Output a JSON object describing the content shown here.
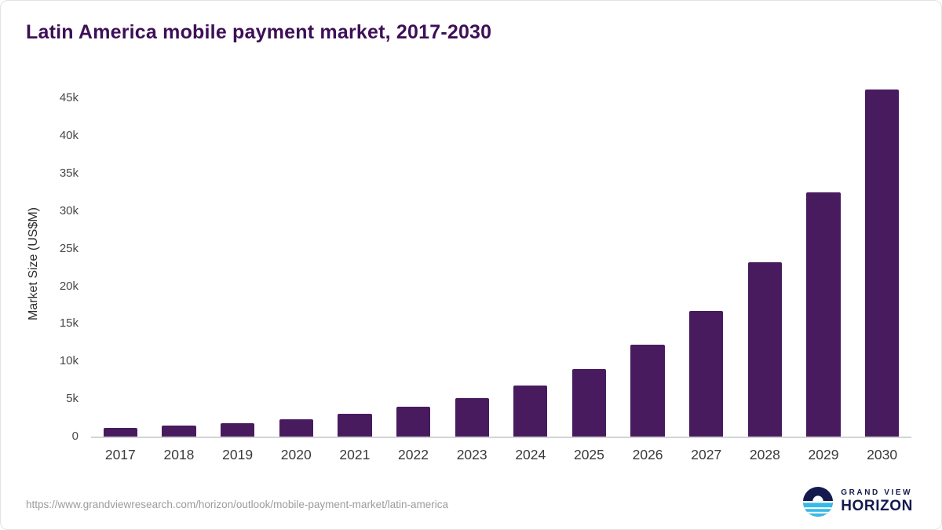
{
  "title": "Latin America mobile payment market, 2017-2030",
  "y_axis_title": "Market Size (US$M)",
  "footer": {
    "source_url": "https://www.grandviewresearch.com/horizon/outlook/mobile-payment-market/latin-america"
  },
  "logo": {
    "line1": "GRAND VIEW",
    "line2": "HORIZON"
  },
  "colors": {
    "bar": "#481b5f",
    "title": "#3e0f57",
    "axis_text": "#3a3a3a",
    "footer_text": "#9c9c9c",
    "logo_navy": "#141a4e",
    "logo_cyan": "#35bae8"
  },
  "chart_data": {
    "type": "bar",
    "title": "Latin America mobile payment market, 2017-2030",
    "categories": [
      "2017",
      "2018",
      "2019",
      "2020",
      "2021",
      "2022",
      "2023",
      "2024",
      "2025",
      "2026",
      "2027",
      "2028",
      "2029",
      "2030"
    ],
    "values": [
      1200,
      1500,
      1800,
      2300,
      3000,
      4000,
      5100,
      6800,
      9000,
      12200,
      16700,
      23200,
      32500,
      46200
    ],
    "xlabel": "",
    "ylabel": "Market Size (US$M)",
    "ylim": [
      0,
      46500
    ],
    "yticks": [
      0,
      5000,
      10000,
      15000,
      20000,
      25000,
      30000,
      35000,
      40000,
      45000
    ],
    "ytick_labels": [
      "0",
      "5k",
      "10k",
      "15k",
      "20k",
      "25k",
      "30k",
      "35k",
      "40k",
      "45k"
    ],
    "grid": false,
    "legend": false,
    "bar_color": "#481b5f"
  }
}
